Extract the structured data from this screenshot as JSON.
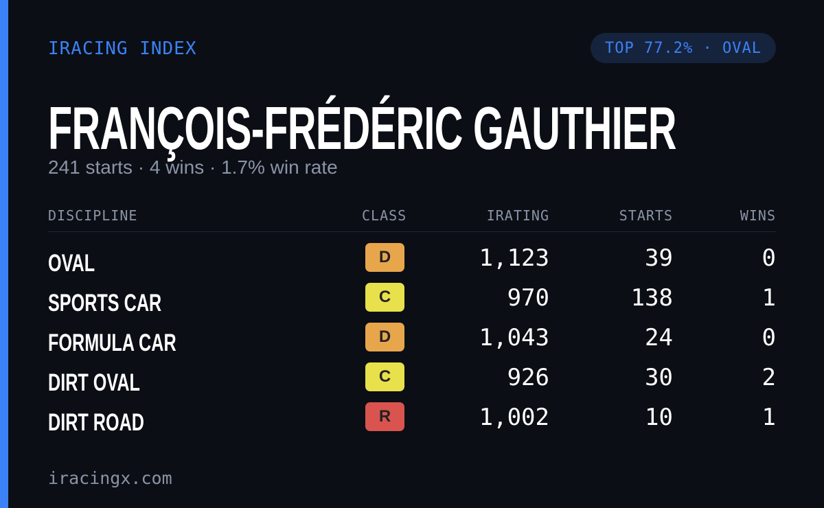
{
  "header": {
    "brand": "IRACING INDEX",
    "badge": "TOP 77.2% · OVAL"
  },
  "name": "FRANÇOIS-FRÉDÉRIC GAUTHIER",
  "summary": "241 starts · 4 wins · 1.7% win rate",
  "table": {
    "columns": [
      "DISCIPLINE",
      "CLASS",
      "IRATING",
      "STARTS",
      "WINS"
    ],
    "rows": [
      {
        "discipline": "OVAL",
        "class": "D",
        "class_color": "#e8a64c",
        "irating": "1,123",
        "starts": "39",
        "wins": "0"
      },
      {
        "discipline": "SPORTS CAR",
        "class": "C",
        "class_color": "#e8e14c",
        "irating": "970",
        "starts": "138",
        "wins": "1"
      },
      {
        "discipline": "FORMULA CAR",
        "class": "D",
        "class_color": "#e8a64c",
        "irating": "1,043",
        "starts": "24",
        "wins": "0"
      },
      {
        "discipline": "DIRT OVAL",
        "class": "C",
        "class_color": "#e8e14c",
        "irating": "926",
        "starts": "30",
        "wins": "2"
      },
      {
        "discipline": "DIRT ROAD",
        "class": "R",
        "class_color": "#d9544f",
        "irating": "1,002",
        "starts": "10",
        "wins": "1"
      }
    ]
  },
  "footer": "iracingx.com"
}
